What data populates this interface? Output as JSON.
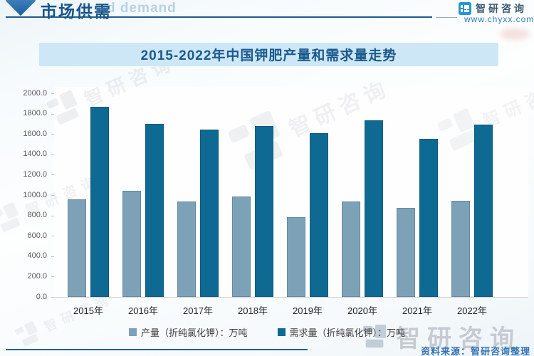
{
  "header": {
    "section_title": "市场供需",
    "ghost_text": "d demand",
    "brand_name": "智研咨询",
    "brand_url": "www.chyxx.com"
  },
  "chart_data": {
    "type": "bar",
    "title": "2015-2022年中国钾肥产量和需求量走势",
    "categories": [
      "2015年",
      "2016年",
      "2017年",
      "2018年",
      "2019年",
      "2020年",
      "2021年",
      "2022年"
    ],
    "series": [
      {
        "name": "产量（折纯氯化钾）：万吨",
        "color": "#7da2b8",
        "values": [
          960,
          1040,
          940,
          985,
          785,
          940,
          875,
          945
        ]
      },
      {
        "name": "需求量（折纯氯化钾）：万吨",
        "color": "#0e6a93",
        "values": [
          1865,
          1700,
          1645,
          1680,
          1605,
          1735,
          1555,
          1695
        ]
      }
    ],
    "ylim": [
      0,
      2000
    ],
    "y_tick_step": 200,
    "y_tick_labels": [
      "2000.0",
      "1800.0",
      "1600.0",
      "1400.0",
      "1200.0",
      "1000.0",
      "800.0",
      "600.0",
      "400.0",
      "200.0",
      "0.0"
    ],
    "grid": false,
    "legend_position": "bottom"
  },
  "footer": {
    "source_label": "资料来源：智研咨询整理"
  },
  "watermark": {
    "text": "智研咨询"
  }
}
